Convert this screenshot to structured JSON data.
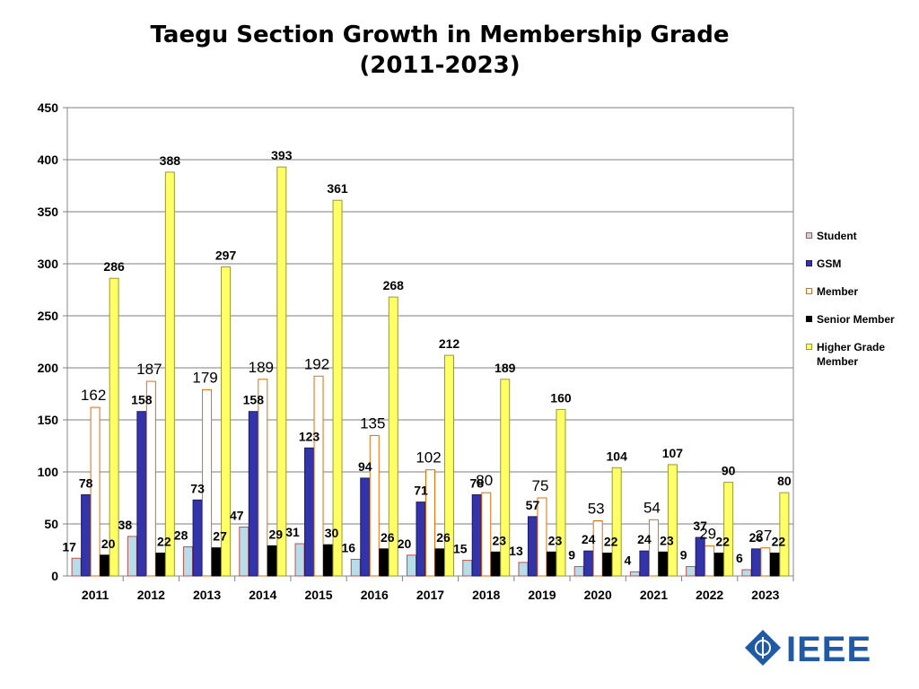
{
  "page": {
    "title_line1": "Taegu Section Growth in Membership Grade",
    "title_line2": "(2011-2023)"
  },
  "logo": {
    "text": "IEEE",
    "color": "#1f5aa6"
  },
  "chart_data": {
    "type": "bar",
    "title": "Taegu Section Growth in Membership Grade (2011-2023)",
    "xlabel": "",
    "ylabel": "",
    "ylim": [
      0,
      450
    ],
    "yticks": [
      0,
      50,
      100,
      150,
      200,
      250,
      300,
      350,
      400,
      450
    ],
    "grid": true,
    "legend_position": "right",
    "categories": [
      "2011",
      "2012",
      "2013",
      "2014",
      "2015",
      "2016",
      "2017",
      "2018",
      "2019",
      "2020",
      "2021",
      "2022",
      "2023"
    ],
    "series": [
      {
        "name": "Student",
        "fill": "#b7dde8",
        "stroke": "#c0504d",
        "values": [
          17,
          38,
          28,
          47,
          31,
          16,
          20,
          15,
          13,
          9,
          4,
          9,
          6
        ],
        "labels": [
          "17",
          "38",
          "28",
          "47",
          "31",
          "16",
          "20",
          "15",
          "13",
          "9",
          "4",
          "9",
          "6"
        ]
      },
      {
        "name": "GSM",
        "fill": "#3333aa",
        "stroke": "#1a1a66",
        "values": [
          78,
          158,
          73,
          158,
          123,
          94,
          71,
          78,
          57,
          24,
          24,
          37,
          26
        ],
        "labels": [
          "78",
          "158",
          "73",
          "158",
          "123",
          "94",
          "71",
          "78",
          "57",
          "24",
          "24",
          "37",
          "26"
        ]
      },
      {
        "name": "Member",
        "fill": "#ffffff",
        "stroke": "#e36c0a",
        "values": [
          162,
          187,
          179,
          189,
          192,
          135,
          102,
          80,
          75,
          53,
          54,
          29,
          27
        ],
        "labels": [
          "162",
          "187",
          "179",
          "189",
          "192",
          "135",
          "102",
          "80",
          "75",
          "53",
          "54",
          "29",
          "27"
        ]
      },
      {
        "name": "Senior Member",
        "fill": "#000000",
        "stroke": "#000000",
        "values": [
          20,
          22,
          27,
          29,
          30,
          26,
          26,
          23,
          23,
          22,
          23,
          22,
          22
        ],
        "labels": [
          "20",
          "22",
          "27",
          "29",
          "30",
          "26",
          "26",
          "23",
          "23",
          "22",
          "23",
          "22",
          "22"
        ]
      },
      {
        "name": "Higher Grade Member",
        "fill": "#ffff66",
        "stroke": "#999933",
        "values": [
          286,
          388,
          297,
          393,
          361,
          268,
          212,
          189,
          160,
          104,
          107,
          90,
          80
        ],
        "labels": [
          "286",
          "388",
          "297",
          "393",
          "361",
          "268",
          "212",
          "189",
          "160",
          "104",
          "107",
          "90",
          "80"
        ]
      }
    ]
  }
}
